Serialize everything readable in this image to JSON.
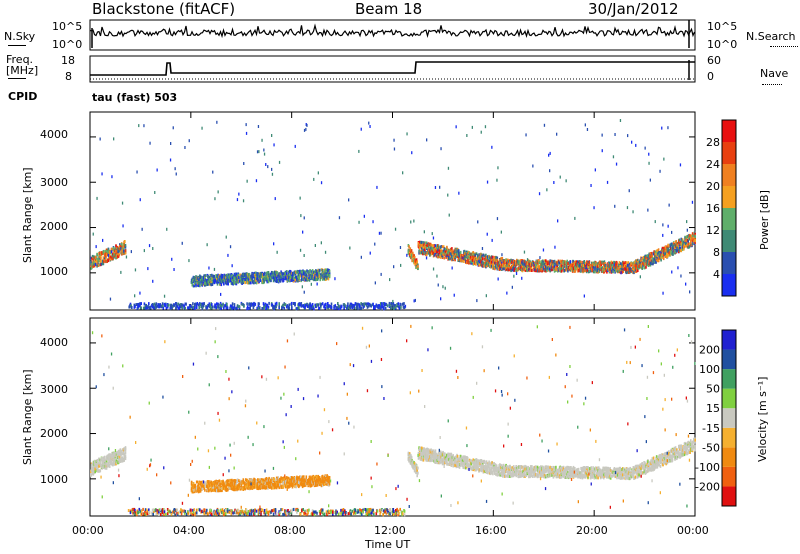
{
  "header": {
    "station": "Blackstone (fitACF)",
    "beam": "Beam 18",
    "date": "30/Jan/2012"
  },
  "noise_panel": {
    "left_label": "N.Sky",
    "right_label": "N.Search",
    "left_ticks": [
      "10^5",
      "10^0"
    ],
    "right_ticks": [
      "10^5",
      "10^0"
    ]
  },
  "freq_panel": {
    "left_label_1": "Freq.",
    "left_label_2": "[MHz]",
    "left_ticks": [
      "18",
      "8"
    ],
    "right_label": "Nave",
    "right_ticks": [
      "60",
      "0"
    ],
    "cpid_label": "CPID",
    "mode_label": "tau (fast) 503"
  },
  "colors": {
    "power": [
      "#1a2ff0",
      "#2a4fb0",
      "#3f8a75",
      "#5fae6a",
      "#f5a020",
      "#f08020",
      "#e84010",
      "#e81010"
    ],
    "velocity": [
      "#e01010",
      "#f06010",
      "#f08a10",
      "#f5b030",
      "#c9c9c0",
      "#80d040",
      "#40a060",
      "#2050a0",
      "#2020d0"
    ]
  },
  "chart_data": [
    {
      "type": "heatmap",
      "name": "power",
      "ylabel": "Slant Range [km]",
      "yticks": [
        1000,
        2000,
        3000,
        4000
      ],
      "ylim": [
        180,
        4550
      ],
      "xlim": [
        0,
        24
      ],
      "colorbar_label": "Power [dB]",
      "colorbar_ticks": [
        "4",
        "8",
        "12",
        "16",
        "20",
        "24",
        "28"
      ],
      "colorbar_range": [
        0,
        32
      ]
    },
    {
      "type": "heatmap",
      "name": "velocity",
      "ylabel": "Slant Range [km]",
      "yticks": [
        1000,
        2000,
        3000,
        4000
      ],
      "ylim": [
        180,
        4550
      ],
      "xlim": [
        0,
        24
      ],
      "xlabel": "Time UT",
      "xticks": [
        "00:00",
        "04:00",
        "08:00",
        "12:00",
        "16:00",
        "20:00",
        "00:00"
      ],
      "colorbar_label": "Velocity [m s⁻¹]",
      "colorbar_ticks": [
        "-200",
        "-100",
        "-50",
        "-15",
        "15",
        "50",
        "100",
        "200"
      ]
    }
  ]
}
